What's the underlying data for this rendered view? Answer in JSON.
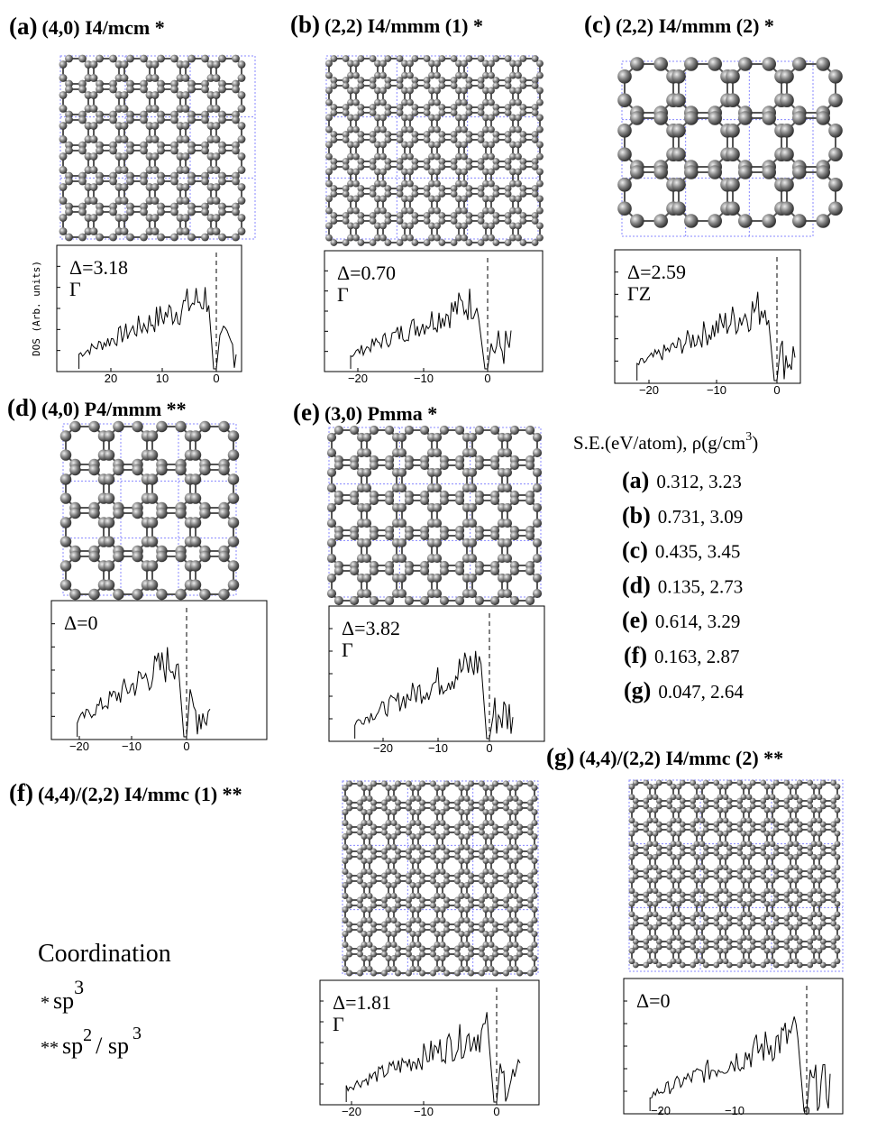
{
  "panels": [
    {
      "letter": "(a)",
      "title": "(4,0) I4/mcm *",
      "gap": "Δ=3.18",
      "kpoint": "Γ",
      "xticks": [
        "20",
        "10",
        "0"
      ]
    },
    {
      "letter": "(b)",
      "title": "(2,2) I4/mmm (1) *",
      "gap": "Δ=0.70",
      "kpoint": "Γ",
      "xticks": [
        "−20",
        "−10",
        "0"
      ]
    },
    {
      "letter": "(c)",
      "title": "(2,2) I4/mmm (2) *",
      "gap": "Δ=2.59",
      "kpoint": "ΓZ",
      "xticks": [
        "−20",
        "−10",
        "0"
      ]
    },
    {
      "letter": "(d)",
      "title": "(4,0) P4/mmm **",
      "gap": "Δ=0",
      "kpoint": null,
      "xticks": [
        "−20",
        "−10",
        "0"
      ]
    },
    {
      "letter": "(e)",
      "title": "(3,0) Pmma *",
      "gap": "Δ=3.82",
      "kpoint": "Γ",
      "xticks": [
        "−20",
        "−10",
        "0"
      ]
    },
    {
      "letter": "(f)",
      "title": "(4,4)/(2,2) I4/mmc (1) **",
      "gap": "Δ=1.81",
      "kpoint": "Γ",
      "xticks": [
        "−20",
        "−10",
        "0"
      ]
    },
    {
      "letter": "(g)",
      "title": "(4,4)/(2,2) I4/mmc (2) **",
      "gap": "Δ=0",
      "kpoint": null,
      "xticks": [
        "−20",
        "−10",
        "0"
      ]
    }
  ],
  "dos_ylabel": "DOS (Arb. units)",
  "table": {
    "header": "S.E.(eV/atom), ρ(g/cm",
    "header_sup": "3",
    "header_end": ")",
    "rows": [
      [
        "(a)",
        "0.312, 3.23"
      ],
      [
        "(b)",
        "0.731, 3.09"
      ],
      [
        "(c)",
        "0.435, 3.45"
      ],
      [
        "(d)",
        "0.135, 2.73"
      ],
      [
        "(e)",
        "0.614, 3.29"
      ],
      [
        "(f)",
        "0.163, 2.87"
      ],
      [
        "(g)",
        "0.047, 2.64"
      ]
    ]
  },
  "coordination": {
    "title": "Coordination",
    "line1": {
      "mark": "*",
      "text": "sp",
      "sup": "3"
    },
    "line2": {
      "mark": "**",
      "text": "sp",
      "sup": "2",
      "sep": "/ sp",
      "sup2": "3"
    }
  }
}
